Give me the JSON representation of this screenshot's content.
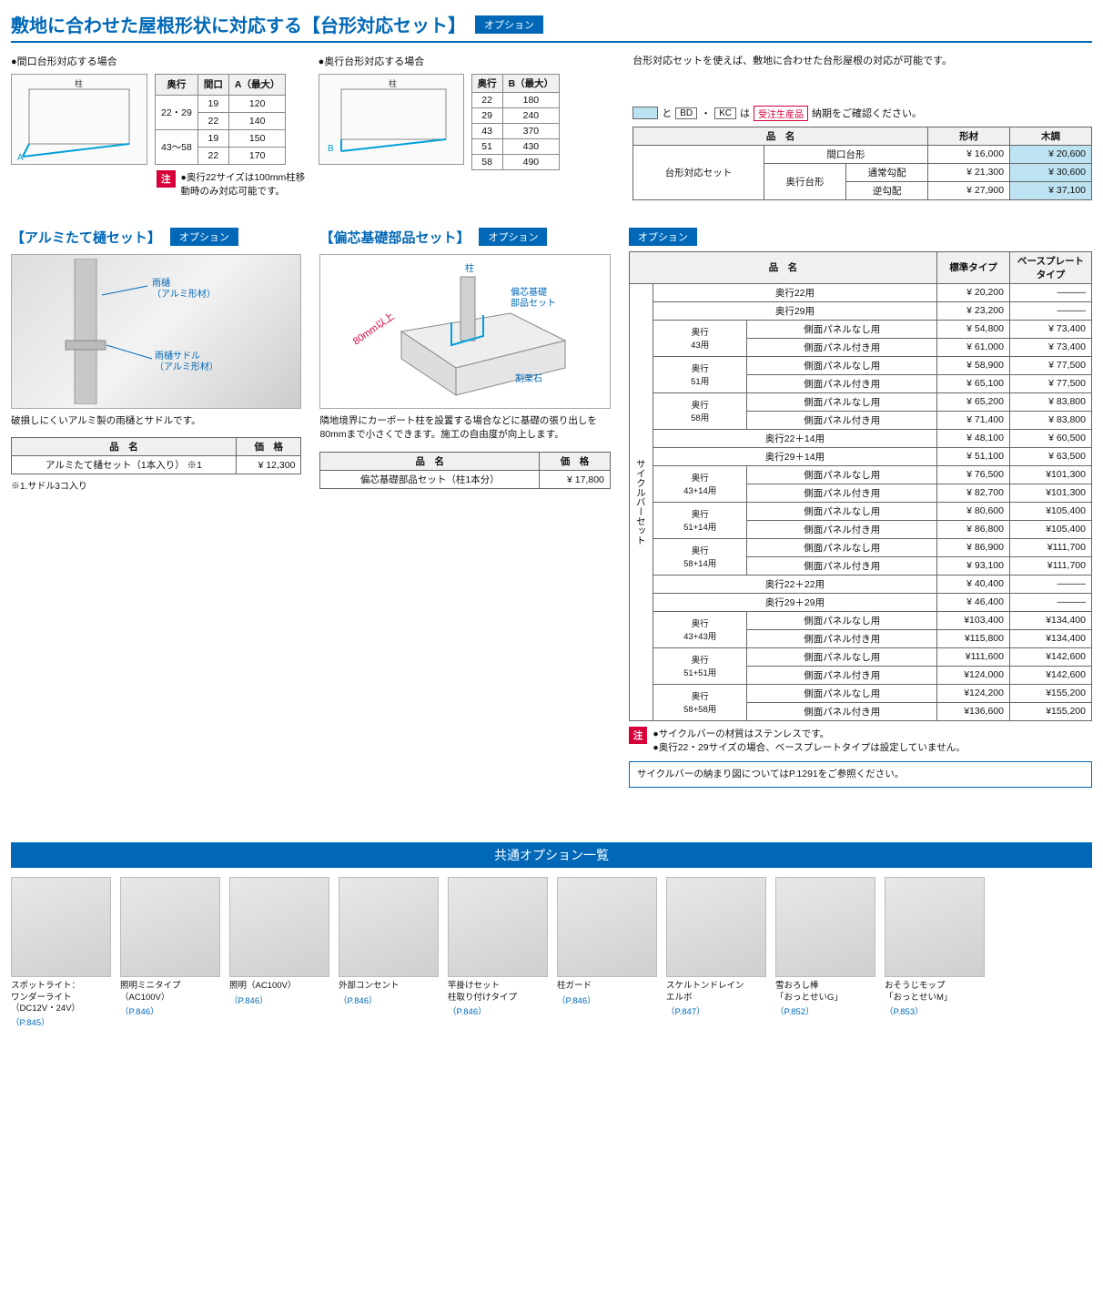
{
  "colors": {
    "primary": "#0068b7",
    "highlight": "#bde3f2",
    "alert": "#d7003a",
    "border": "#666666",
    "bg": "#ffffff"
  },
  "main_title": "敷地に合わせた屋根形状に対応する【台形対応セット】",
  "option_label": "オプション",
  "top_desc": "台形対応セットを使えば、敷地に合わせた台形屋根の対応が可能です。",
  "diag1": {
    "heading": "●間口台形対応する場合",
    "pillar_label": "柱",
    "dim_label": "A",
    "table": {
      "headers": [
        "奥行",
        "間口",
        "A（最大）"
      ],
      "rows": [
        [
          "22・29",
          "19",
          "120"
        ],
        [
          "",
          "22",
          "140"
        ],
        [
          "43～58",
          "19",
          "150"
        ],
        [
          "",
          "22",
          "170"
        ]
      ]
    },
    "note_badge": "注",
    "note": "●奥行22サイズは100mm柱移動時のみ対応可能です。"
  },
  "diag2": {
    "heading": "●奥行台形対応する場合",
    "pillar_label": "柱",
    "dim_label": "B",
    "table": {
      "headers": [
        "奥行",
        "B（最大）"
      ],
      "rows": [
        [
          "22",
          "180"
        ],
        [
          "29",
          "240"
        ],
        [
          "43",
          "370"
        ],
        [
          "51",
          "430"
        ],
        [
          "58",
          "490"
        ]
      ]
    }
  },
  "legend": {
    "and": "と",
    "bd": "BD",
    "kc": "KC",
    "ha": "は",
    "jyuchu": "受注生産品",
    "tail": "納期をご確認ください。"
  },
  "price1": {
    "header_name": "品　名",
    "header_mat": "形材",
    "header_wood": "木調",
    "set_label": "台形対応セット",
    "rows": [
      {
        "sub1": "間口台形",
        "sub2": "",
        "mat": "¥ 16,000",
        "wood": "¥ 20,600"
      },
      {
        "sub1": "奥行台形",
        "sub2": "通常勾配",
        "mat": "¥ 21,300",
        "wood": "¥ 30,600"
      },
      {
        "sub1": "",
        "sub2": "逆勾配",
        "mat": "¥ 27,900",
        "wood": "¥ 37,100"
      }
    ]
  },
  "alumi": {
    "title": "【アルミたて樋セット】",
    "labels": {
      "amadoi": "雨樋\n（アルミ形材）",
      "saddle": "雨樋サドル\n（アルミ形材）"
    },
    "caption": "破損しにくいアルミ製の雨樋とサドルです。",
    "table": {
      "h1": "品　名",
      "h2": "価　格",
      "name": "アルミたて樋セット（1本入り） ※1",
      "price": "¥ 12,300"
    },
    "footnote": "※1.サドル3コ入り"
  },
  "henshin": {
    "title": "【偏芯基礎部品セット】",
    "labels": {
      "pillar": "柱",
      "set": "偏芯基礎\n部品セット",
      "dim": "80mm以上",
      "stone": "割栗石"
    },
    "caption": "隣地境界にカーポート柱を設置する場合などに基礎の張り出しを80mmまで小さくできます。施工の自由度が向上します。",
    "table": {
      "h1": "品　名",
      "h2": "価　格",
      "name": "偏芯基礎部品セット（柱1本分）",
      "price": "¥ 17,800"
    }
  },
  "cycle": {
    "header_name": "品　名",
    "header_std": "標準タイプ",
    "header_base": "ベースプレートタイプ",
    "group_label": "サイクルバーセット",
    "dash": "———",
    "rows": [
      {
        "g": "",
        "n": "奥行22用",
        "p1": "¥ 20,200",
        "p2": "———"
      },
      {
        "g": "",
        "n": "奥行29用",
        "p1": "¥ 23,200",
        "p2": "———"
      },
      {
        "g": "奥行\n43用",
        "n": "側面パネルなし用",
        "p1": "¥ 54,800",
        "p2": "¥ 73,400"
      },
      {
        "g": "",
        "n": "側面パネル付き用",
        "p1": "¥ 61,000",
        "p2": "¥ 73,400"
      },
      {
        "g": "奥行\n51用",
        "n": "側面パネルなし用",
        "p1": "¥ 58,900",
        "p2": "¥ 77,500"
      },
      {
        "g": "",
        "n": "側面パネル付き用",
        "p1": "¥ 65,100",
        "p2": "¥ 77,500"
      },
      {
        "g": "奥行\n58用",
        "n": "側面パネルなし用",
        "p1": "¥ 65,200",
        "p2": "¥ 83,800"
      },
      {
        "g": "",
        "n": "側面パネル付き用",
        "p1": "¥ 71,400",
        "p2": "¥ 83,800"
      },
      {
        "g": "",
        "n": "奥行22＋14用",
        "p1": "¥ 48,100",
        "p2": "¥ 60,500"
      },
      {
        "g": "",
        "n": "奥行29＋14用",
        "p1": "¥ 51,100",
        "p2": "¥ 63,500"
      },
      {
        "g": "奥行\n43+14用",
        "n": "側面パネルなし用",
        "p1": "¥ 76,500",
        "p2": "¥101,300"
      },
      {
        "g": "",
        "n": "側面パネル付き用",
        "p1": "¥ 82,700",
        "p2": "¥101,300"
      },
      {
        "g": "奥行\n51+14用",
        "n": "側面パネルなし用",
        "p1": "¥ 80,600",
        "p2": "¥105,400"
      },
      {
        "g": "",
        "n": "側面パネル付き用",
        "p1": "¥ 86,800",
        "p2": "¥105,400"
      },
      {
        "g": "奥行\n58+14用",
        "n": "側面パネルなし用",
        "p1": "¥ 86,900",
        "p2": "¥111,700"
      },
      {
        "g": "",
        "n": "側面パネル付き用",
        "p1": "¥ 93,100",
        "p2": "¥111,700"
      },
      {
        "g": "",
        "n": "奥行22＋22用",
        "p1": "¥ 40,400",
        "p2": "———"
      },
      {
        "g": "",
        "n": "奥行29＋29用",
        "p1": "¥ 46,400",
        "p2": "———"
      },
      {
        "g": "奥行\n43+43用",
        "n": "側面パネルなし用",
        "p1": "¥103,400",
        "p2": "¥134,400"
      },
      {
        "g": "",
        "n": "側面パネル付き用",
        "p1": "¥115,800",
        "p2": "¥134,400"
      },
      {
        "g": "奥行\n51+51用",
        "n": "側面パネルなし用",
        "p1": "¥111,600",
        "p2": "¥142,600"
      },
      {
        "g": "",
        "n": "側面パネル付き用",
        "p1": "¥124,000",
        "p2": "¥142,600"
      },
      {
        "g": "奥行\n58+58用",
        "n": "側面パネルなし用",
        "p1": "¥124,200",
        "p2": "¥155,200"
      },
      {
        "g": "",
        "n": "側面パネル付き用",
        "p1": "¥136,600",
        "p2": "¥155,200"
      }
    ],
    "note_badge": "注",
    "note": "●サイクルバーの材質はステンレスです。\n●奥行22・29サイズの場合、ベースプレートタイプは設定していません。",
    "info": "サイクルバーの納まり図についてはP.1291をご参照ください。"
  },
  "common": {
    "banner": "共通オプション一覧",
    "items": [
      {
        "name": "スポットライト：\nワンダーライト\n（DC12V・24V）",
        "page": "（P.845）"
      },
      {
        "name": "照明ミニタイプ\n（AC100V）",
        "page": "（P.846）"
      },
      {
        "name": "照明（AC100V）",
        "page": "（P.846）"
      },
      {
        "name": "外部コンセント",
        "page": "（P.846）"
      },
      {
        "name": "竿掛けセット\n柱取り付けタイプ",
        "page": "（P.846）"
      },
      {
        "name": "柱ガード",
        "page": "（P.846）"
      },
      {
        "name": "スケルトンドレイン\nエルボ",
        "page": "（P.847）"
      },
      {
        "name": "雪おろし棒\n「おっとせいG」",
        "page": "（P.852）"
      },
      {
        "name": "おそうじモップ\n「おっとせいM」",
        "page": "（P.853）"
      }
    ]
  }
}
